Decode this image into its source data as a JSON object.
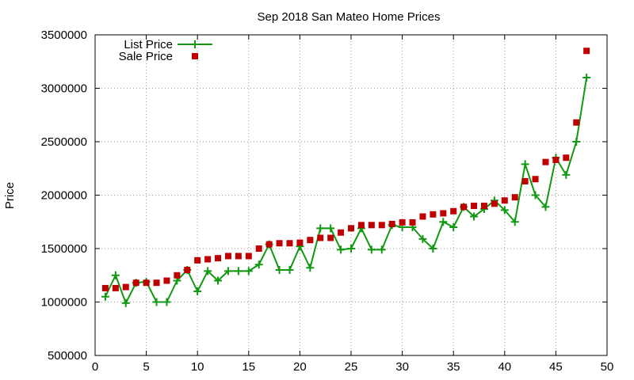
{
  "chart_data": {
    "type": "line",
    "title": "Sep 2018 San Mateo Home Prices",
    "xlabel": "",
    "ylabel": "Price",
    "xlim": [
      0,
      50
    ],
    "ylim": [
      500000,
      3500000
    ],
    "xticks": [
      0,
      5,
      10,
      15,
      20,
      25,
      30,
      35,
      40,
      45,
      50
    ],
    "yticks": [
      500000,
      1000000,
      1500000,
      2000000,
      2500000,
      3000000,
      3500000
    ],
    "grid": true,
    "legend_position": "top-left",
    "x": [
      1,
      2,
      3,
      4,
      5,
      6,
      7,
      8,
      9,
      10,
      11,
      12,
      13,
      14,
      15,
      16,
      17,
      18,
      19,
      20,
      21,
      22,
      23,
      24,
      25,
      26,
      27,
      28,
      29,
      30,
      31,
      32,
      33,
      34,
      35,
      36,
      37,
      38,
      39,
      40,
      41,
      42,
      43,
      44,
      45,
      46,
      47,
      48
    ],
    "series": [
      {
        "name": "List Price",
        "style": "line-points",
        "color": "#119911",
        "values": [
          1050000,
          1250000,
          990000,
          1180000,
          1190000,
          1000000,
          1000000,
          1200000,
          1300000,
          1100000,
          1290000,
          1200000,
          1290000,
          1290000,
          1290000,
          1350000,
          1540000,
          1300000,
          1300000,
          1520000,
          1320000,
          1690000,
          1690000,
          1490000,
          1500000,
          1690000,
          1490000,
          1490000,
          1720000,
          1700000,
          1700000,
          1590000,
          1500000,
          1750000,
          1700000,
          1890000,
          1800000,
          1870000,
          1950000,
          1860000,
          1750000,
          2290000,
          2000000,
          1890000,
          2350000,
          2190000,
          2500000,
          3100000
        ]
      },
      {
        "name": "Sale Price",
        "style": "points",
        "color": "#c00000",
        "values": [
          1130000,
          1130000,
          1140000,
          1180000,
          1180000,
          1180000,
          1200000,
          1250000,
          1300000,
          1390000,
          1400000,
          1410000,
          1430000,
          1430000,
          1430000,
          1500000,
          1540000,
          1550000,
          1550000,
          1555000,
          1580000,
          1600000,
          1600000,
          1650000,
          1690000,
          1720000,
          1720000,
          1720000,
          1730000,
          1745000,
          1745000,
          1800000,
          1820000,
          1830000,
          1850000,
          1890000,
          1900000,
          1900000,
          1920000,
          1950000,
          1980000,
          2130000,
          2150000,
          2310000,
          2330000,
          2350000,
          2680000,
          3350000
        ]
      }
    ]
  }
}
